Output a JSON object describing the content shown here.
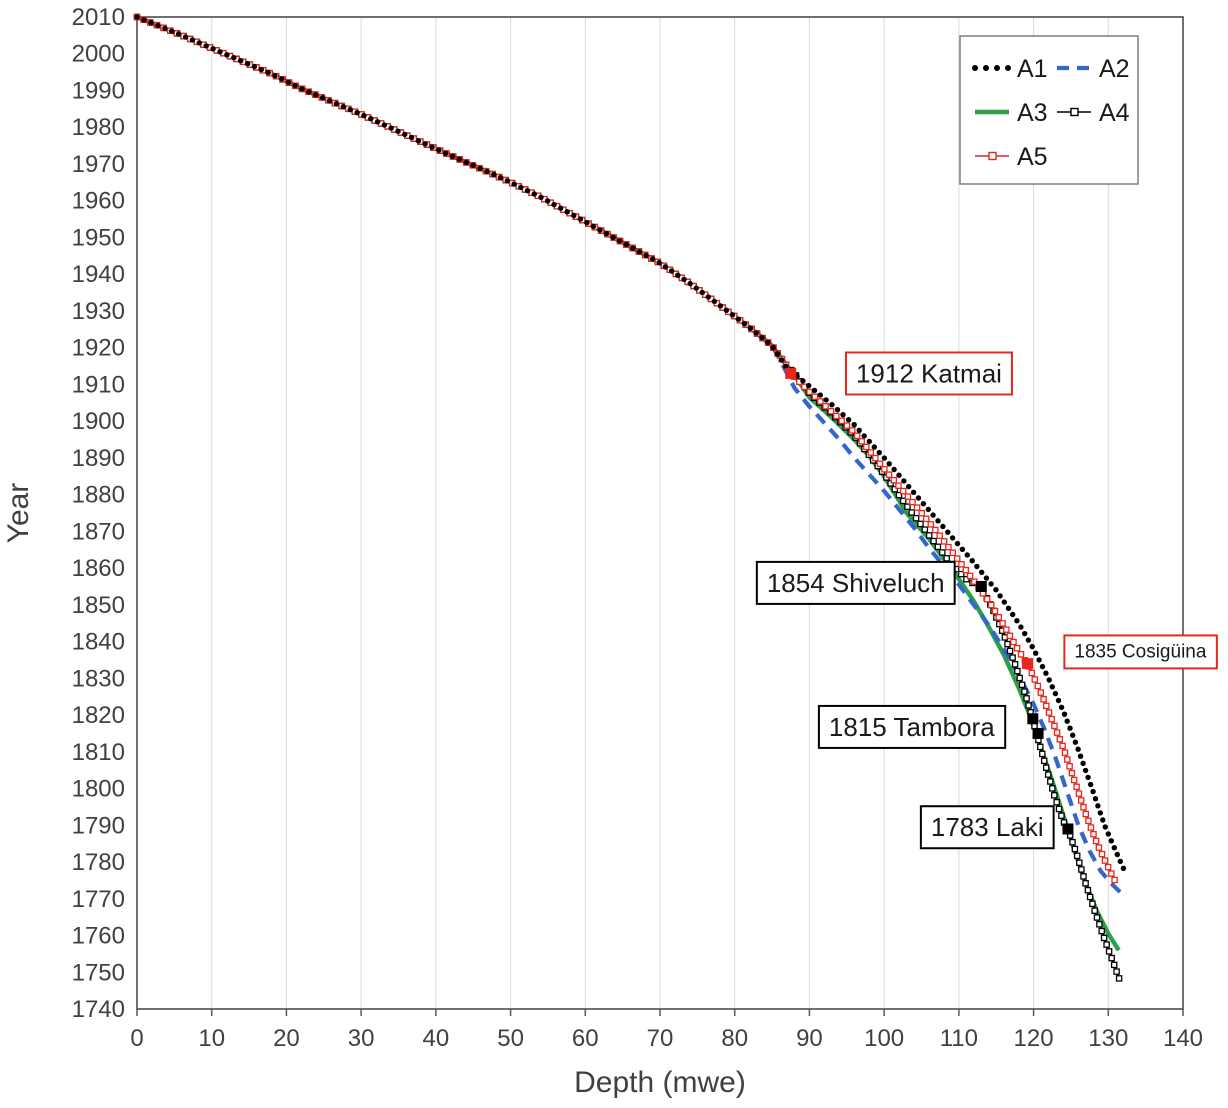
{
  "chart_data": {
    "type": "line",
    "title": "",
    "xlabel": "Depth (mwe)",
    "ylabel": "Year",
    "xlim": [
      0,
      140
    ],
    "ylim": [
      1740,
      2010
    ],
    "xtick_step": 10,
    "ytick_step": 10,
    "grid": "vertical-only",
    "grid_color": "#d9d9d9",
    "axis_color": "#595959",
    "tick_label_color": "#404040",
    "legend_position": "top-right",
    "series": [
      {
        "name": "A1",
        "color": "#000000",
        "style": "dotted",
        "points": [
          [
            0,
            2010
          ],
          [
            3,
            2007.5
          ],
          [
            6,
            2005
          ],
          [
            10,
            2001.5
          ],
          [
            14,
            1998
          ],
          [
            18,
            1994.5
          ],
          [
            22,
            1990.5
          ],
          [
            26,
            1987
          ],
          [
            30,
            1983.5
          ],
          [
            34,
            1979.8
          ],
          [
            38,
            1976
          ],
          [
            42,
            1972.3
          ],
          [
            46,
            1968.7
          ],
          [
            50,
            1965
          ],
          [
            54,
            1961
          ],
          [
            58,
            1956.5
          ],
          [
            62,
            1952
          ],
          [
            66,
            1947.5
          ],
          [
            70,
            1943
          ],
          [
            74,
            1937.5
          ],
          [
            78,
            1931.5
          ],
          [
            82,
            1925.5
          ],
          [
            85,
            1920.5
          ],
          [
            87,
            1914.5
          ],
          [
            90,
            1909.5
          ],
          [
            93,
            1904.5
          ],
          [
            96,
            1899
          ],
          [
            100,
            1890
          ],
          [
            104,
            1880.5
          ],
          [
            108,
            1871
          ],
          [
            112,
            1861.5
          ],
          [
            115,
            1854
          ],
          [
            118,
            1845
          ],
          [
            120,
            1838
          ],
          [
            122,
            1830
          ],
          [
            124,
            1821
          ],
          [
            126,
            1810.5
          ],
          [
            128,
            1799
          ],
          [
            129.5,
            1790
          ],
          [
            131,
            1783
          ],
          [
            132.3,
            1777
          ]
        ]
      },
      {
        "name": "A2",
        "color": "#3566CC",
        "style": "dashed",
        "points": [
          [
            0,
            2010
          ],
          [
            3,
            2007.5
          ],
          [
            6,
            2005
          ],
          [
            10,
            2001.5
          ],
          [
            14,
            1998
          ],
          [
            18,
            1994.5
          ],
          [
            22,
            1990.5
          ],
          [
            26,
            1987
          ],
          [
            30,
            1983.5
          ],
          [
            34,
            1979.8
          ],
          [
            38,
            1976
          ],
          [
            42,
            1972.3
          ],
          [
            46,
            1968.7
          ],
          [
            50,
            1965
          ],
          [
            54,
            1961
          ],
          [
            58,
            1956.5
          ],
          [
            62,
            1952
          ],
          [
            66,
            1947.5
          ],
          [
            70,
            1943
          ],
          [
            74,
            1937.5
          ],
          [
            78,
            1931.5
          ],
          [
            82,
            1925.5
          ],
          [
            85,
            1920.5
          ],
          [
            86,
            1917
          ],
          [
            87,
            1913
          ],
          [
            88,
            1909
          ],
          [
            90,
            1904
          ],
          [
            92,
            1899.5
          ],
          [
            94,
            1895
          ],
          [
            96,
            1890
          ],
          [
            98,
            1885.5
          ],
          [
            100,
            1881
          ],
          [
            102,
            1876
          ],
          [
            104,
            1871
          ],
          [
            106,
            1865.5
          ],
          [
            108,
            1860.5
          ],
          [
            110,
            1855.5
          ],
          [
            112,
            1850
          ],
          [
            114,
            1844.5
          ],
          [
            116,
            1838
          ],
          [
            118,
            1831
          ],
          [
            120,
            1823
          ],
          [
            121.5,
            1816
          ],
          [
            123,
            1808
          ],
          [
            124.5,
            1799
          ],
          [
            126,
            1790
          ],
          [
            127.5,
            1783
          ],
          [
            129,
            1777.5
          ],
          [
            130.5,
            1774
          ],
          [
            132,
            1771
          ]
        ]
      },
      {
        "name": "A3",
        "color": "#2CA048",
        "style": "solid",
        "points": [
          [
            0,
            2010
          ],
          [
            3,
            2007.5
          ],
          [
            6,
            2005
          ],
          [
            10,
            2001.5
          ],
          [
            14,
            1998
          ],
          [
            18,
            1994.5
          ],
          [
            22,
            1990.5
          ],
          [
            26,
            1987
          ],
          [
            30,
            1983.5
          ],
          [
            34,
            1979.8
          ],
          [
            38,
            1976
          ],
          [
            42,
            1972.3
          ],
          [
            46,
            1968.7
          ],
          [
            50,
            1965
          ],
          [
            54,
            1961
          ],
          [
            58,
            1956.5
          ],
          [
            62,
            1952
          ],
          [
            66,
            1947.5
          ],
          [
            70,
            1943
          ],
          [
            74,
            1937.5
          ],
          [
            78,
            1931.5
          ],
          [
            82,
            1925.5
          ],
          [
            85,
            1920.5
          ],
          [
            87,
            1915
          ],
          [
            88,
            1912.5
          ],
          [
            90,
            1906.5
          ],
          [
            93,
            1901
          ],
          [
            96,
            1895
          ],
          [
            98,
            1890.5
          ],
          [
            100,
            1885
          ],
          [
            101.5,
            1880
          ],
          [
            103,
            1875
          ],
          [
            104.5,
            1871.5
          ],
          [
            106,
            1868
          ],
          [
            108,
            1862.5
          ],
          [
            110,
            1857
          ],
          [
            112,
            1851
          ],
          [
            114,
            1844
          ],
          [
            116,
            1836.5
          ],
          [
            118,
            1827.5
          ],
          [
            119.5,
            1820
          ],
          [
            121,
            1811
          ],
          [
            122.5,
            1802
          ],
          [
            124,
            1792.5
          ],
          [
            125.5,
            1783
          ],
          [
            127,
            1774
          ],
          [
            128.5,
            1766.5
          ],
          [
            130,
            1760.5
          ],
          [
            131.4,
            1756
          ]
        ]
      },
      {
        "name": "A4",
        "color": "#000000",
        "style": "line-open-square",
        "points": [
          [
            0,
            2010
          ],
          [
            3,
            2007.5
          ],
          [
            6,
            2005
          ],
          [
            10,
            2001.5
          ],
          [
            14,
            1998
          ],
          [
            18,
            1994.5
          ],
          [
            22,
            1990.5
          ],
          [
            26,
            1987
          ],
          [
            30,
            1983.5
          ],
          [
            34,
            1979.8
          ],
          [
            38,
            1976
          ],
          [
            42,
            1972.3
          ],
          [
            46,
            1968.7
          ],
          [
            50,
            1965
          ],
          [
            54,
            1961
          ],
          [
            58,
            1956.5
          ],
          [
            62,
            1952
          ],
          [
            66,
            1947.5
          ],
          [
            70,
            1943
          ],
          [
            74,
            1937.5
          ],
          [
            78,
            1931.5
          ],
          [
            82,
            1925.5
          ],
          [
            85,
            1920.5
          ],
          [
            87,
            1915
          ],
          [
            88,
            1913
          ],
          [
            90,
            1907.5
          ],
          [
            93,
            1902
          ],
          [
            96,
            1896
          ],
          [
            100,
            1885.5
          ],
          [
            103,
            1877
          ],
          [
            106,
            1869
          ],
          [
            109,
            1861
          ],
          [
            111,
            1857
          ],
          [
            113,
            1854.5
          ],
          [
            114.5,
            1849
          ],
          [
            116,
            1842
          ],
          [
            117.5,
            1834
          ],
          [
            119,
            1825
          ],
          [
            120.2,
            1816.5
          ],
          [
            121.5,
            1807
          ],
          [
            122.8,
            1798
          ],
          [
            124,
            1791
          ],
          [
            124.6,
            1789
          ],
          [
            125.8,
            1782
          ],
          [
            127,
            1774
          ],
          [
            128.3,
            1766
          ],
          [
            129.5,
            1759
          ],
          [
            130.7,
            1752.5
          ],
          [
            131.5,
            1748
          ]
        ]
      },
      {
        "name": "A5",
        "color": "#E8261B",
        "style": "line-open-square",
        "points": [
          [
            0,
            2010
          ],
          [
            3,
            2007.5
          ],
          [
            6,
            2005
          ],
          [
            10,
            2001.5
          ],
          [
            14,
            1998
          ],
          [
            18,
            1994.5
          ],
          [
            22,
            1990.5
          ],
          [
            26,
            1987
          ],
          [
            30,
            1983.5
          ],
          [
            34,
            1979.8
          ],
          [
            38,
            1976
          ],
          [
            42,
            1972.3
          ],
          [
            46,
            1968.7
          ],
          [
            50,
            1965
          ],
          [
            54,
            1961
          ],
          [
            58,
            1956.5
          ],
          [
            62,
            1952
          ],
          [
            66,
            1947.5
          ],
          [
            70,
            1943
          ],
          [
            74,
            1937.5
          ],
          [
            78,
            1931.5
          ],
          [
            82,
            1925.5
          ],
          [
            85,
            1920.5
          ],
          [
            87,
            1915
          ],
          [
            87.5,
            1913
          ],
          [
            90,
            1908
          ],
          [
            93,
            1902.5
          ],
          [
            96,
            1897
          ],
          [
            100,
            1887
          ],
          [
            104,
            1877.5
          ],
          [
            107,
            1870
          ],
          [
            110,
            1862
          ],
          [
            112,
            1856.5
          ],
          [
            114,
            1851
          ],
          [
            116,
            1844.5
          ],
          [
            118,
            1837.5
          ],
          [
            119.3,
            1833.5
          ],
          [
            121,
            1826
          ],
          [
            122.5,
            1818.5
          ],
          [
            124,
            1811
          ],
          [
            125.5,
            1802
          ],
          [
            127,
            1793
          ],
          [
            128.5,
            1785
          ],
          [
            130,
            1778.5
          ],
          [
            131,
            1774.5
          ]
        ]
      }
    ],
    "annotations": [
      {
        "label": "1912 Katmai",
        "color": "#E8261B",
        "markers": [
          [
            87.5,
            1913
          ]
        ],
        "label_x": 106,
        "label_y": 1913,
        "small": false
      },
      {
        "label": "1854 Shiveluch",
        "color": "#000000",
        "markers": [
          [
            113,
            1855
          ]
        ],
        "label_x": 96.2,
        "label_y": 1856,
        "small": false
      },
      {
        "label": "1835 Cosigüina",
        "color": "#E8261B",
        "markers": [
          [
            119.2,
            1834
          ]
        ],
        "label_x": 134.3,
        "label_y": 1837.5,
        "small": true
      },
      {
        "label": "1815 Tambora",
        "color": "#000000",
        "markers": [
          [
            119.9,
            1819
          ],
          [
            120.6,
            1815
          ]
        ],
        "label_x": 103.7,
        "label_y": 1816.8,
        "small": false
      },
      {
        "label": "1783 Laki",
        "color": "#000000",
        "markers": [
          [
            124.6,
            1789
          ]
        ],
        "label_x": 113.8,
        "label_y": 1789.5,
        "small": false
      }
    ],
    "legend": {
      "entries": [
        "A1",
        "A2",
        "A3",
        "A4",
        "A5"
      ],
      "columns": 2
    }
  }
}
